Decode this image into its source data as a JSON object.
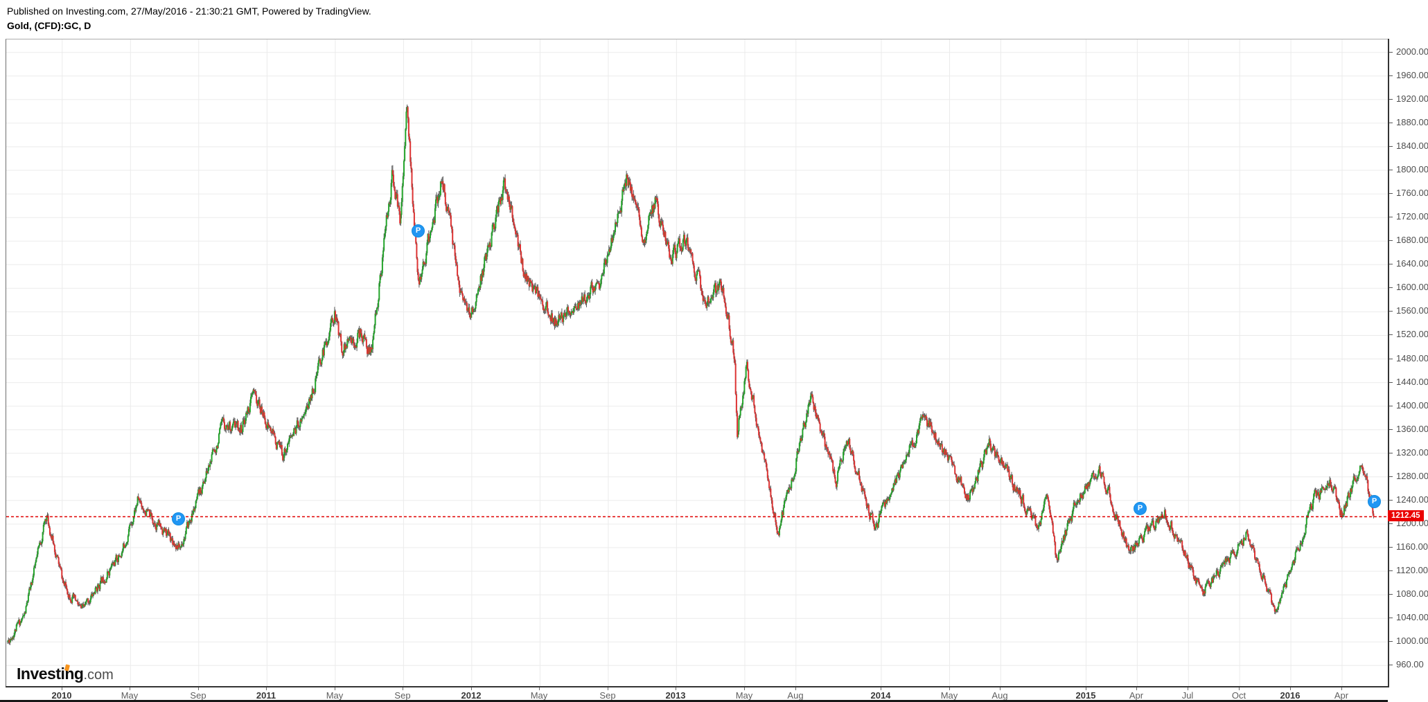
{
  "header": {
    "published_line": "Published on Investing.com, 27/May/2016 - 21:30:21 GMT, Powered by TradingView.",
    "symbol_line": "Gold, (CFD):GC, D"
  },
  "logo": {
    "name": "Investing",
    "suffix": ".com"
  },
  "price_axis": {
    "last_price_label": "1212.45"
  },
  "time_axis": {
    "labels": [
      {
        "text": "2010",
        "m": 0,
        "bold": true
      },
      {
        "text": "May",
        "m": 4,
        "bold": false
      },
      {
        "text": "Sep",
        "m": 8,
        "bold": false
      },
      {
        "text": "2011",
        "m": 12,
        "bold": true
      },
      {
        "text": "May",
        "m": 16,
        "bold": false
      },
      {
        "text": "Sep",
        "m": 20,
        "bold": false
      },
      {
        "text": "2012",
        "m": 24,
        "bold": true
      },
      {
        "text": "May",
        "m": 28,
        "bold": false
      },
      {
        "text": "Sep",
        "m": 32,
        "bold": false
      },
      {
        "text": "2013",
        "m": 36,
        "bold": true
      },
      {
        "text": "May",
        "m": 40,
        "bold": false
      },
      {
        "text": "Aug",
        "m": 43,
        "bold": false
      },
      {
        "text": "2014",
        "m": 48,
        "bold": true
      },
      {
        "text": "May",
        "m": 52,
        "bold": false
      },
      {
        "text": "Aug",
        "m": 55,
        "bold": false
      },
      {
        "text": "2015",
        "m": 60,
        "bold": true
      },
      {
        "text": "Apr",
        "m": 63,
        "bold": false
      },
      {
        "text": "Jul",
        "m": 66,
        "bold": false
      },
      {
        "text": "Oct",
        "m": 69,
        "bold": false
      },
      {
        "text": "2016",
        "m": 72,
        "bold": true
      },
      {
        "text": "Apr",
        "m": 75,
        "bold": false
      }
    ]
  },
  "markers": [
    {
      "label": "P",
      "m": 6.79,
      "price": 1209,
      "date": "2010-07-25"
    },
    {
      "label": "P",
      "m": 20.84,
      "price": 1697,
      "date": "2011-09-26"
    },
    {
      "label": "P",
      "m": 63.15,
      "price": 1226,
      "date": "2015-04-05"
    },
    {
      "label": "P",
      "m": 76.87,
      "price": 1238,
      "date": "2016-05-27"
    }
  ],
  "chart_data": {
    "type": "candlestick",
    "title": "Gold, (CFD):GC, D",
    "symbol": "Gold (CFD):GC",
    "interval": "D",
    "xlabel": "",
    "ylabel": "",
    "grid": true,
    "legend_position": "none",
    "ylim": [
      924,
      2022
    ],
    "y_ticks": [
      2000,
      1960,
      1920,
      1880,
      1840,
      1800,
      1760,
      1720,
      1680,
      1640,
      1600,
      1560,
      1520,
      1480,
      1440,
      1400,
      1360,
      1320,
      1280,
      1240,
      1200,
      1160,
      1120,
      1080,
      1040,
      1000,
      960
    ],
    "xlim_months": [
      -3.2,
      77.6
    ],
    "x_unit": "months since Jan 2010",
    "last_price": 1212.45,
    "last_price_line": 1212.45,
    "seed": 11,
    "bars_per_month": 21.4,
    "colors": {
      "up": "#23a42a",
      "down": "#dd3333",
      "wick": "#5c5c5c",
      "grid": "#ebebeb",
      "last_price_line": "#e00000",
      "last_price_tag_bg": "#ea0000",
      "marker_blue": "#2196f3",
      "logo_accent_orange": "#f7941e"
    },
    "anchors": [
      {
        "d": "2009-09-25",
        "m": -3.2,
        "p": 1000
      },
      {
        "d": "2009-10-25",
        "m": -2.2,
        "p": 1046
      },
      {
        "d": "2009-12-03",
        "m": -0.93,
        "p": 1215
      },
      {
        "d": "2010-01-04",
        "m": 0.1,
        "p": 1096
      },
      {
        "d": "2010-02-05",
        "m": 1.15,
        "p": 1052
      },
      {
        "d": "2010-03-16",
        "m": 2.5,
        "p": 1112
      },
      {
        "d": "2010-04-16",
        "m": 3.5,
        "p": 1152
      },
      {
        "d": "2010-05-14",
        "m": 4.45,
        "p": 1243
      },
      {
        "d": "2010-06-01",
        "m": 5.0,
        "p": 1218
      },
      {
        "d": "2010-07-28",
        "m": 6.9,
        "p": 1160
      },
      {
        "d": "2010-09-01",
        "m": 8.0,
        "p": 1246
      },
      {
        "d": "2010-10-14",
        "m": 9.45,
        "p": 1370
      },
      {
        "d": "2010-11-16",
        "m": 10.5,
        "p": 1362
      },
      {
        "d": "2010-12-07",
        "m": 11.2,
        "p": 1420
      },
      {
        "d": "2011-01-28",
        "m": 12.9,
        "p": 1318
      },
      {
        "d": "2011-03-16",
        "m": 14.5,
        "p": 1410
      },
      {
        "d": "2011-04-29",
        "m": 15.95,
        "p": 1560
      },
      {
        "d": "2011-05-13",
        "m": 16.4,
        "p": 1498
      },
      {
        "d": "2011-06-16",
        "m": 17.5,
        "p": 1525
      },
      {
        "d": "2011-07-04",
        "m": 18.1,
        "p": 1486
      },
      {
        "d": "2011-08-11",
        "m": 19.35,
        "p": 1795
      },
      {
        "d": "2011-08-25",
        "m": 19.8,
        "p": 1710
      },
      {
        "d": "2011-09-06",
        "m": 20.2,
        "p": 1908
      },
      {
        "d": "2011-09-26",
        "m": 20.85,
        "p": 1600
      },
      {
        "d": "2011-10-28",
        "m": 21.9,
        "p": 1738
      },
      {
        "d": "2011-11-08",
        "m": 22.25,
        "p": 1788
      },
      {
        "d": "2011-12-16",
        "m": 23.5,
        "p": 1572
      },
      {
        "d": "2011-12-29",
        "m": 23.95,
        "p": 1548
      },
      {
        "d": "2012-02-28",
        "m": 25.9,
        "p": 1778
      },
      {
        "d": "2012-04-04",
        "m": 27.1,
        "p": 1625
      },
      {
        "d": "2012-05-30",
        "m": 28.95,
        "p": 1540
      },
      {
        "d": "2012-07-13",
        "m": 30.4,
        "p": 1578
      },
      {
        "d": "2012-08-16",
        "m": 31.5,
        "p": 1608
      },
      {
        "d": "2012-10-04",
        "m": 33.1,
        "p": 1788
      },
      {
        "d": "2012-11-02",
        "m": 34.05,
        "p": 1682
      },
      {
        "d": "2012-11-23",
        "m": 34.75,
        "p": 1748
      },
      {
        "d": "2012-12-20",
        "m": 35.65,
        "p": 1652
      },
      {
        "d": "2013-01-17",
        "m": 36.55,
        "p": 1682
      },
      {
        "d": "2013-02-22",
        "m": 37.7,
        "p": 1576
      },
      {
        "d": "2013-03-22",
        "m": 38.7,
        "p": 1608
      },
      {
        "d": "2013-04-12",
        "m": 39.4,
        "p": 1482
      },
      {
        "d": "2013-04-16",
        "m": 39.55,
        "p": 1356
      },
      {
        "d": "2013-05-03",
        "m": 40.1,
        "p": 1468
      },
      {
        "d": "2013-06-28",
        "m": 41.95,
        "p": 1186
      },
      {
        "d": "2013-08-28",
        "m": 43.9,
        "p": 1415
      },
      {
        "d": "2013-10-11",
        "m": 45.35,
        "p": 1272
      },
      {
        "d": "2013-10-29",
        "m": 45.95,
        "p": 1348
      },
      {
        "d": "2013-12-20",
        "m": 47.65,
        "p": 1190
      },
      {
        "d": "2014-01-03",
        "m": 48.1,
        "p": 1228
      },
      {
        "d": "2014-03-17",
        "m": 50.55,
        "p": 1382
      },
      {
        "d": "2014-06-03",
        "m": 53.1,
        "p": 1244
      },
      {
        "d": "2014-07-11",
        "m": 54.35,
        "p": 1338
      },
      {
        "d": "2014-10-07",
        "m": 57.2,
        "p": 1192
      },
      {
        "d": "2014-10-21",
        "m": 57.7,
        "p": 1248
      },
      {
        "d": "2014-11-08",
        "m": 58.25,
        "p": 1142
      },
      {
        "d": "2014-12-10",
        "m": 59.3,
        "p": 1228
      },
      {
        "d": "2015-01-22",
        "m": 60.75,
        "p": 1298
      },
      {
        "d": "2015-03-17",
        "m": 62.55,
        "p": 1150
      },
      {
        "d": "2015-05-18",
        "m": 64.6,
        "p": 1224
      },
      {
        "d": "2015-07-24",
        "m": 66.8,
        "p": 1082
      },
      {
        "d": "2015-10-14",
        "m": 69.45,
        "p": 1184
      },
      {
        "d": "2015-12-03",
        "m": 71.1,
        "p": 1046
      },
      {
        "d": "2016-02-11",
        "m": 73.4,
        "p": 1244
      },
      {
        "d": "2016-03-11",
        "m": 74.35,
        "p": 1274
      },
      {
        "d": "2016-03-29",
        "m": 74.95,
        "p": 1216
      },
      {
        "d": "2016-05-02",
        "m": 76.1,
        "p": 1298
      },
      {
        "d": "2016-05-20",
        "m": 76.65,
        "p": 1248
      },
      {
        "d": "2016-05-27",
        "m": 76.87,
        "p": 1212.45
      }
    ]
  }
}
